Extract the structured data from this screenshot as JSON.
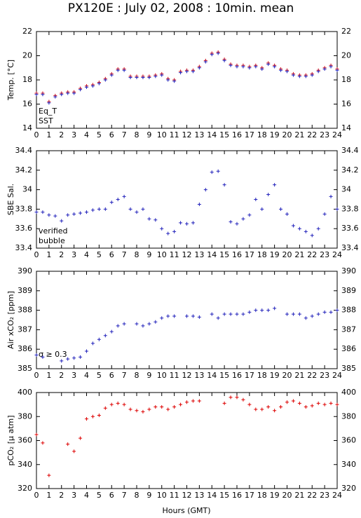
{
  "chart_data": [
    {
      "type": "scatter",
      "title": "PX120E : July 02, 2008 : 10min. mean",
      "ylabel": "Temp. [°C]",
      "x": [
        0,
        0.5,
        1,
        1.5,
        2,
        2.5,
        3,
        3.5,
        4,
        4.5,
        5,
        5.5,
        6,
        6.5,
        7,
        7.5,
        8,
        8.5,
        9,
        9.5,
        10,
        10.5,
        11,
        11.5,
        12,
        12.5,
        13,
        13.5,
        14,
        14.5,
        15,
        15.5,
        16,
        16.5,
        17,
        17.5,
        18,
        18.5,
        19,
        19.5,
        20,
        20.5,
        21,
        21.5,
        22,
        22.5,
        23,
        23.5,
        24
      ],
      "series": [
        {
          "name": "Eq_T",
          "color": "#dd0000",
          "values": [
            16.9,
            16.9,
            16.2,
            16.7,
            16.9,
            17.0,
            17.0,
            17.3,
            17.5,
            17.6,
            17.8,
            18.1,
            18.5,
            18.9,
            18.9,
            18.3,
            18.3,
            18.3,
            18.3,
            18.4,
            18.5,
            18.1,
            18.0,
            18.7,
            18.8,
            18.8,
            19.1,
            19.6,
            20.2,
            20.3,
            19.7,
            19.3,
            19.2,
            19.2,
            19.1,
            19.2,
            19.0,
            19.4,
            19.2,
            18.9,
            18.8,
            18.5,
            18.4,
            18.4,
            18.5,
            18.8,
            19.0,
            19.2,
            18.9
          ]
        },
        {
          "name": "SST",
          "color": "#2222bb",
          "values": [
            16.8,
            16.8,
            16.1,
            16.6,
            16.8,
            16.9,
            16.9,
            17.2,
            17.4,
            17.5,
            17.7,
            18.0,
            18.4,
            18.8,
            18.8,
            18.2,
            18.2,
            18.2,
            18.2,
            18.3,
            18.4,
            18.0,
            17.9,
            18.6,
            18.7,
            18.7,
            19.0,
            19.5,
            20.1,
            20.2,
            19.6,
            19.2,
            19.1,
            19.1,
            19.0,
            19.1,
            18.9,
            19.3,
            19.1,
            18.8,
            18.7,
            18.4,
            18.3,
            18.3,
            18.4,
            18.7,
            18.9,
            19.1,
            18.8
          ]
        }
      ],
      "xlim": [
        0,
        24
      ],
      "xticks": [
        0,
        1,
        2,
        3,
        4,
        5,
        6,
        7,
        8,
        9,
        10,
        11,
        12,
        13,
        14,
        15,
        16,
        17,
        18,
        19,
        20,
        21,
        22,
        23,
        24
      ],
      "ylim": [
        14,
        22
      ],
      "yticks": [
        14,
        16,
        18,
        20,
        22
      ],
      "legend": "lower left"
    },
    {
      "type": "scatter",
      "ylabel": "SBE Sal.",
      "x": [
        0,
        0.5,
        1,
        1.5,
        2,
        2.5,
        3,
        3.5,
        4,
        4.5,
        5,
        5.5,
        6,
        6.5,
        7,
        7.5,
        8,
        8.5,
        9,
        9.5,
        10,
        10.5,
        11,
        11.5,
        12,
        12.5,
        13,
        13.5,
        14,
        14.5,
        15,
        15.5,
        16,
        16.5,
        17,
        17.5,
        18,
        18.5,
        19,
        19.5,
        20,
        20.5,
        21,
        21.5,
        22,
        22.5,
        23,
        23.5,
        24
      ],
      "series": [
        {
          "name": "verified",
          "color": "#2222bb",
          "values": [
            33.77,
            33.77,
            33.74,
            33.73,
            33.68,
            33.74,
            33.75,
            33.76,
            33.77,
            33.79,
            33.8,
            33.8,
            33.87,
            33.9,
            33.93,
            33.8,
            33.77,
            33.8,
            33.7,
            33.69,
            33.6,
            33.55,
            33.57,
            33.66,
            33.65,
            33.66,
            33.85,
            34.0,
            34.18,
            34.19,
            34.05,
            33.67,
            33.65,
            33.7,
            33.74,
            33.9,
            33.8,
            33.95,
            34.05,
            33.8,
            33.75,
            33.63,
            33.6,
            33.57,
            33.53,
            33.6,
            33.75,
            33.93,
            33.8
          ]
        },
        {
          "name": "bubble",
          "color": "#cc22cc",
          "values": [
            null,
            null,
            null,
            null,
            null,
            null,
            null,
            null,
            null,
            null,
            null,
            null,
            null,
            null,
            null,
            null,
            null,
            null,
            null,
            null,
            null,
            null,
            null,
            null,
            null,
            null,
            null,
            null,
            null,
            null,
            null,
            null,
            null,
            null,
            null,
            null,
            null,
            null,
            null,
            null,
            null,
            null,
            null,
            null,
            null,
            null,
            null,
            null,
            null
          ]
        }
      ],
      "xlim": [
        0,
        24
      ],
      "xticks": [
        0,
        1,
        2,
        3,
        4,
        5,
        6,
        7,
        8,
        9,
        10,
        11,
        12,
        13,
        14,
        15,
        16,
        17,
        18,
        19,
        20,
        21,
        22,
        23,
        24
      ],
      "ylim": [
        33.4,
        34.4
      ],
      "yticks": [
        33.4,
        33.6,
        33.8,
        34,
        34.2,
        34.4
      ],
      "legend": "lower left"
    },
    {
      "type": "scatter",
      "ylabel": "Air xCO₂ [ppm]",
      "annotations": [
        "σ ≥ 0.3"
      ],
      "annotation_color": "#cc22cc",
      "x": [
        0,
        0.5,
        1,
        1.5,
        2,
        2.5,
        3,
        3.5,
        4,
        4.5,
        5,
        5.5,
        6,
        6.5,
        7,
        7.5,
        8,
        8.5,
        9,
        9.5,
        10,
        10.5,
        11,
        11.5,
        12,
        12.5,
        13,
        13.5,
        14,
        14.5,
        15,
        15.5,
        16,
        16.5,
        17,
        17.5,
        18,
        18.5,
        19,
        19.5,
        20,
        20.5,
        21,
        21.5,
        22,
        22.5,
        23,
        23.5,
        24
      ],
      "series": [
        {
          "color": "#2222bb",
          "values": [
            385.7,
            385.6,
            null,
            null,
            385.4,
            385.5,
            385.55,
            385.6,
            385.9,
            386.3,
            386.5,
            386.7,
            386.9,
            387.2,
            387.3,
            null,
            387.3,
            387.2,
            387.3,
            387.4,
            387.6,
            387.7,
            387.7,
            null,
            387.7,
            387.7,
            387.65,
            null,
            387.8,
            387.6,
            387.8,
            387.8,
            387.8,
            387.8,
            387.9,
            388.0,
            388.0,
            388.0,
            388.1,
            null,
            387.8,
            387.8,
            387.8,
            387.6,
            387.7,
            387.8,
            387.9,
            387.9,
            388.0
          ]
        }
      ],
      "xlim": [
        0,
        24
      ],
      "xticks": [
        0,
        1,
        2,
        3,
        4,
        5,
        6,
        7,
        8,
        9,
        10,
        11,
        12,
        13,
        14,
        15,
        16,
        17,
        18,
        19,
        20,
        21,
        22,
        23,
        24
      ],
      "ylim": [
        385,
        390
      ],
      "yticks": [
        385,
        386,
        387,
        388,
        389,
        390
      ]
    },
    {
      "type": "scatter",
      "ylabel": "pCO₂ [μ atm]",
      "xlabel": "Hours (GMT)",
      "x": [
        0,
        0.5,
        1,
        1.5,
        2,
        2.5,
        3,
        3.5,
        4,
        4.5,
        5,
        5.5,
        6,
        6.5,
        7,
        7.5,
        8,
        8.5,
        9,
        9.5,
        10,
        10.5,
        11,
        11.5,
        12,
        12.5,
        13,
        13.5,
        14,
        14.5,
        15,
        15.5,
        16,
        16.5,
        17,
        17.5,
        18,
        18.5,
        19,
        19.5,
        20,
        20.5,
        21,
        21.5,
        22,
        22.5,
        23,
        23.5,
        24
      ],
      "series": [
        {
          "color": "#dd0000",
          "values": [
            365,
            358,
            331,
            null,
            null,
            357,
            351,
            362,
            378,
            380,
            381,
            387,
            390,
            391,
            390,
            386,
            385,
            384,
            386,
            388,
            388,
            386,
            388,
            390,
            392,
            393,
            393,
            null,
            null,
            null,
            391,
            396,
            396,
            394,
            390,
            386,
            386,
            388,
            385,
            388,
            392,
            393,
            391,
            388,
            389,
            391,
            390,
            391,
            390
          ]
        }
      ],
      "xlim": [
        0,
        24
      ],
      "xticks": [
        0,
        1,
        2,
        3,
        4,
        5,
        6,
        7,
        8,
        9,
        10,
        11,
        12,
        13,
        14,
        15,
        16,
        17,
        18,
        19,
        20,
        21,
        22,
        23,
        24
      ],
      "ylim": [
        320,
        400
      ],
      "yticks": [
        320,
        340,
        360,
        380,
        400
      ]
    }
  ]
}
